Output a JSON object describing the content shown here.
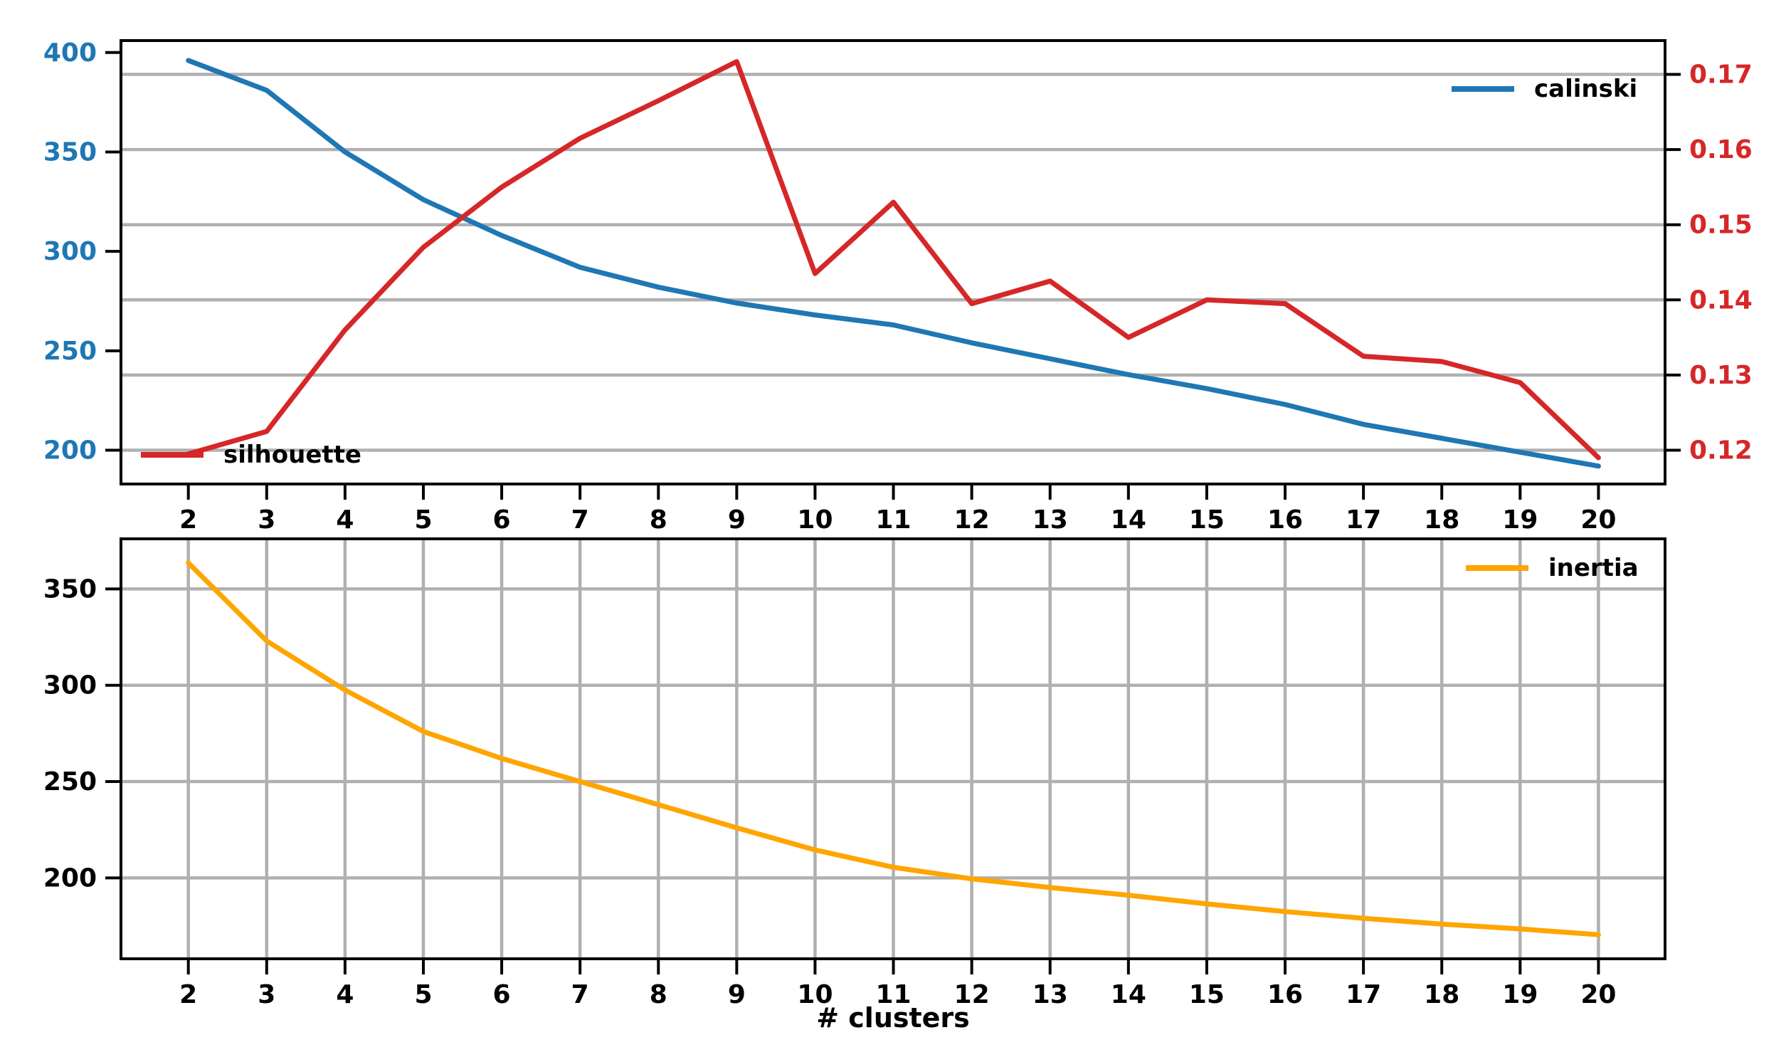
{
  "chart_data": [
    {
      "type": "line",
      "x": [
        2,
        3,
        4,
        5,
        6,
        7,
        8,
        9,
        10,
        11,
        12,
        13,
        14,
        15,
        16,
        17,
        18,
        19,
        20
      ],
      "series": [
        {
          "name": "calinski",
          "axis": "left",
          "color": "#1f77b4",
          "values": [
            396,
            381,
            350,
            326,
            308,
            292,
            282,
            274,
            268,
            263,
            254,
            246,
            238,
            231,
            223,
            213,
            206,
            199,
            192
          ]
        },
        {
          "name": "silhouette",
          "axis": "right",
          "color": "#d62728",
          "values": [
            0.1195,
            0.1225,
            0.136,
            0.147,
            0.155,
            0.1615,
            0.1665,
            0.1717,
            0.1435,
            0.153,
            0.1395,
            0.1425,
            0.135,
            0.14,
            0.1395,
            0.1325,
            0.1318,
            0.129,
            0.119
          ]
        }
      ],
      "left_axis": {
        "ticks": [
          "400",
          "350",
          "300",
          "250",
          "200"
        ],
        "lim": [
          183,
          406
        ],
        "label_color": "#1f77b4"
      },
      "right_axis": {
        "ticks": [
          "0.17",
          "0.16",
          "0.15",
          "0.14",
          "0.13",
          "0.12"
        ],
        "lim": [
          0.1155,
          0.1745
        ],
        "label_color": "#d62728"
      },
      "x_ticks": [
        "2",
        "3",
        "4",
        "5",
        "6",
        "7",
        "8",
        "9",
        "10",
        "11",
        "12",
        "13",
        "14",
        "15",
        "16",
        "17",
        "18",
        "19",
        "20"
      ],
      "xlim": [
        1.14,
        20.85
      ],
      "grid": "horizontal-right-axis",
      "legend_position_calinski": "upper right",
      "legend_position_silhouette": "lower left"
    },
    {
      "type": "line",
      "x": [
        2,
        3,
        4,
        5,
        6,
        7,
        8,
        9,
        10,
        11,
        12,
        13,
        14,
        15,
        16,
        17,
        18,
        19,
        20
      ],
      "series": [
        {
          "name": "inertia",
          "axis": "left",
          "color": "#ffa500",
          "values": [
            363.5,
            323,
            297.5,
            276,
            262,
            250,
            238,
            226,
            214.5,
            205.5,
            199.5,
            195,
            191,
            186.5,
            182.5,
            179,
            176,
            173.5,
            170.5
          ]
        }
      ],
      "left_axis": {
        "ticks": [
          "350",
          "300",
          "250",
          "200"
        ],
        "lim": [
          158,
          376
        ],
        "label_color": "#000000"
      },
      "x_ticks": [
        "2",
        "3",
        "4",
        "5",
        "6",
        "7",
        "8",
        "9",
        "10",
        "11",
        "12",
        "13",
        "14",
        "15",
        "16",
        "17",
        "18",
        "19",
        "20"
      ],
      "xlim": [
        1.14,
        20.85
      ],
      "xlabel": "# clusters",
      "grid": "both",
      "legend_position_inertia": "upper right"
    }
  ],
  "style": {
    "grid_color": "#b0b0b0",
    "spine_color": "#000000",
    "tick_color": "#000000"
  }
}
